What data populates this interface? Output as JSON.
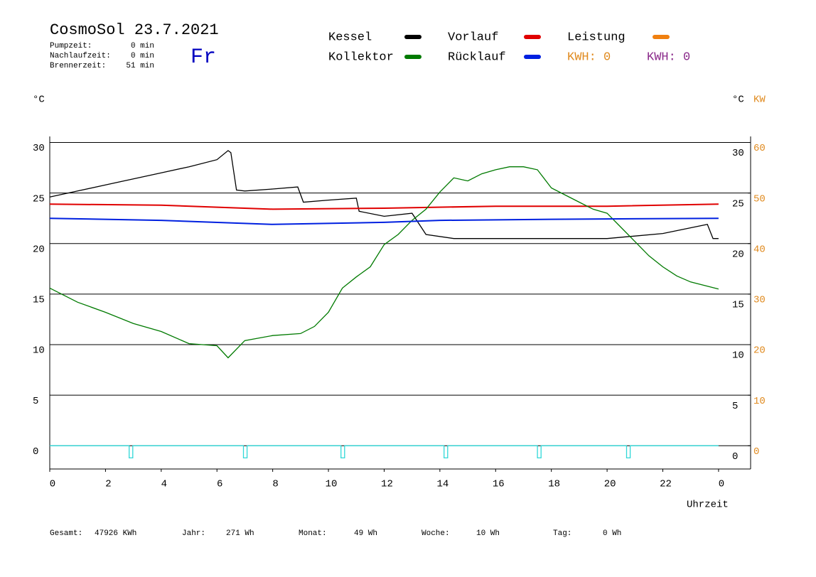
{
  "header": {
    "title": "CosmoSol 23.7.2021",
    "day": "Fr",
    "stats": [
      {
        "label": "Pumpzeit:",
        "value": "0 min"
      },
      {
        "label": "Nachlaufzeit:",
        "value": "0 min"
      },
      {
        "label": "Brennerzeit:",
        "value": "51 min"
      }
    ],
    "kwh": [
      {
        "text": "KWH: 0",
        "color": "#e08a1e"
      },
      {
        "text": "KWH: 0",
        "color": "#8a2a8a"
      }
    ]
  },
  "footer": [
    {
      "label": "Gesamt:",
      "value": "47926 KWh"
    },
    {
      "label": "Jahr:",
      "value": "271 Wh"
    },
    {
      "label": "Monat:",
      "value": "49 Wh"
    },
    {
      "label": "Woche:",
      "value": "10 Wh"
    },
    {
      "label": "Tag:",
      "value": "0 Wh"
    }
  ],
  "chart_data": {
    "type": "line",
    "y_label": "°C",
    "y2_label": "°C",
    "y2_unit": "KW",
    "x_label": "Uhrzeit",
    "xlim": [
      0,
      25.15
    ],
    "xticks": [
      0,
      2,
      4,
      6,
      8,
      10,
      12,
      14,
      16,
      18,
      20,
      22,
      {
        "value": 24,
        "label": "0"
      }
    ],
    "ylim": [
      -2.3,
      30.6
    ],
    "yticks": [
      0,
      5,
      10,
      15,
      20,
      25,
      30
    ],
    "y2lim": [
      -4.6,
      61.2
    ],
    "y2ticks": [
      0,
      10,
      20,
      30,
      40,
      50,
      60
    ],
    "y2color": "#e08a1e",
    "grid": true,
    "series": [
      {
        "name": "Kessel",
        "color": "#000000",
        "x": [
          0,
          1,
          2,
          3,
          4,
          5,
          6,
          6.4,
          6.5,
          6.7,
          7,
          8,
          8.9,
          9.1,
          10,
          11,
          11.1,
          12,
          13,
          13.5,
          14.5,
          16,
          18,
          20,
          22,
          23.6,
          23.8,
          24
        ],
        "values": [
          24.6,
          25.2,
          25.8,
          26.4,
          27,
          27.6,
          28.3,
          29.2,
          29,
          25.3,
          25.2,
          25.4,
          25.6,
          24.1,
          24.3,
          24.5,
          23.2,
          22.7,
          23,
          20.9,
          20.5,
          20.5,
          20.5,
          20.5,
          21,
          21.9,
          20.5,
          20.5
        ]
      },
      {
        "name": "Vorlauf",
        "color": "#e00000",
        "x": [
          0,
          4,
          8,
          12,
          16,
          20,
          24
        ],
        "values": [
          23.9,
          23.8,
          23.4,
          23.5,
          23.7,
          23.7,
          23.9
        ]
      },
      {
        "name": "Leistung",
        "color": "#f08010",
        "axis": "y2"
      },
      {
        "name": "Kollektor",
        "color": "#007a00",
        "x": [
          0,
          1,
          2,
          3,
          4,
          5,
          6,
          6.4,
          7,
          8,
          9,
          9.5,
          10,
          10.5,
          11,
          11.5,
          12,
          12.5,
          13,
          13.5,
          14,
          14.5,
          15,
          15.5,
          16,
          16.5,
          17,
          17.5,
          18,
          18.5,
          19,
          19.5,
          20,
          20.5,
          21,
          21.5,
          22,
          22.5,
          23,
          24
        ],
        "values": [
          15.6,
          14.2,
          13.2,
          12.1,
          11.3,
          10.1,
          9.9,
          8.7,
          10.4,
          10.9,
          11.1,
          11.8,
          13.2,
          15.6,
          16.7,
          17.7,
          19.9,
          20.9,
          22.3,
          23.4,
          25.1,
          26.5,
          26.2,
          26.9,
          27.3,
          27.6,
          27.6,
          27.3,
          25.5,
          24.8,
          24.1,
          23.4,
          23,
          21.6,
          20.2,
          18.8,
          17.7,
          16.8,
          16.2,
          15.5
        ]
      },
      {
        "name": "Rücklauf",
        "color": "#0020e0",
        "x": [
          0,
          4,
          8,
          12,
          14,
          18,
          24
        ],
        "values": [
          22.5,
          22.3,
          21.9,
          22.1,
          22.3,
          22.4,
          22.5
        ]
      },
      {
        "color": "#30d8d8",
        "x": [
          0,
          2.85,
          2.85,
          2.98,
          2.98,
          6.95,
          6.95,
          7.08,
          7.08,
          10.45,
          10.45,
          10.58,
          10.58,
          14.15,
          14.15,
          14.28,
          14.28,
          17.5,
          17.5,
          17.63,
          17.63,
          20.7,
          20.7,
          20.83,
          20.83,
          24
        ],
        "values": [
          0,
          0,
          -1.2,
          -1.2,
          0,
          0,
          -1.2,
          -1.2,
          0,
          0,
          -1.2,
          -1.2,
          0,
          0,
          -1.2,
          -1.2,
          0,
          0,
          -1.2,
          -1.2,
          0,
          0,
          -1.2,
          -1.2,
          0,
          0
        ]
      }
    ]
  }
}
